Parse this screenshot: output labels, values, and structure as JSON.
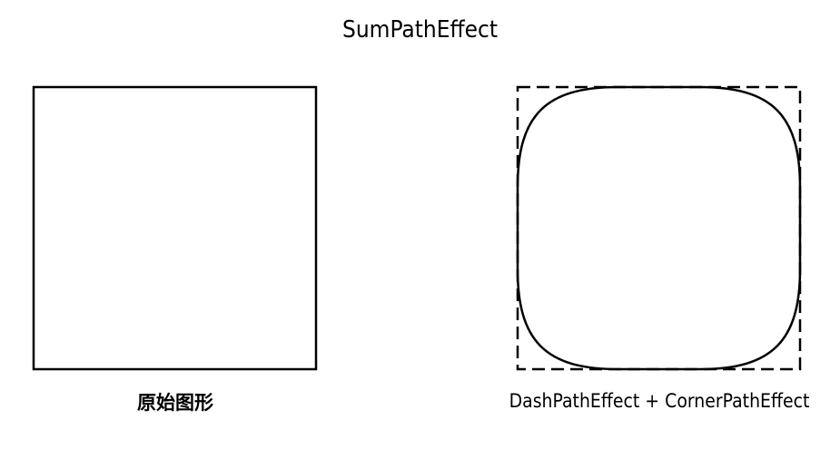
{
  "title": "SumPathEffect",
  "panels": [
    {
      "caption": "原始图形",
      "shape": "square",
      "stroke": "solid"
    },
    {
      "caption": "DashPathEffect + CornerPathEffect",
      "shape": "square",
      "effects": [
        "dashed-outline",
        "rounded-corners"
      ]
    }
  ],
  "colors": {
    "stroke": "#000000",
    "background": "#ffffff"
  }
}
